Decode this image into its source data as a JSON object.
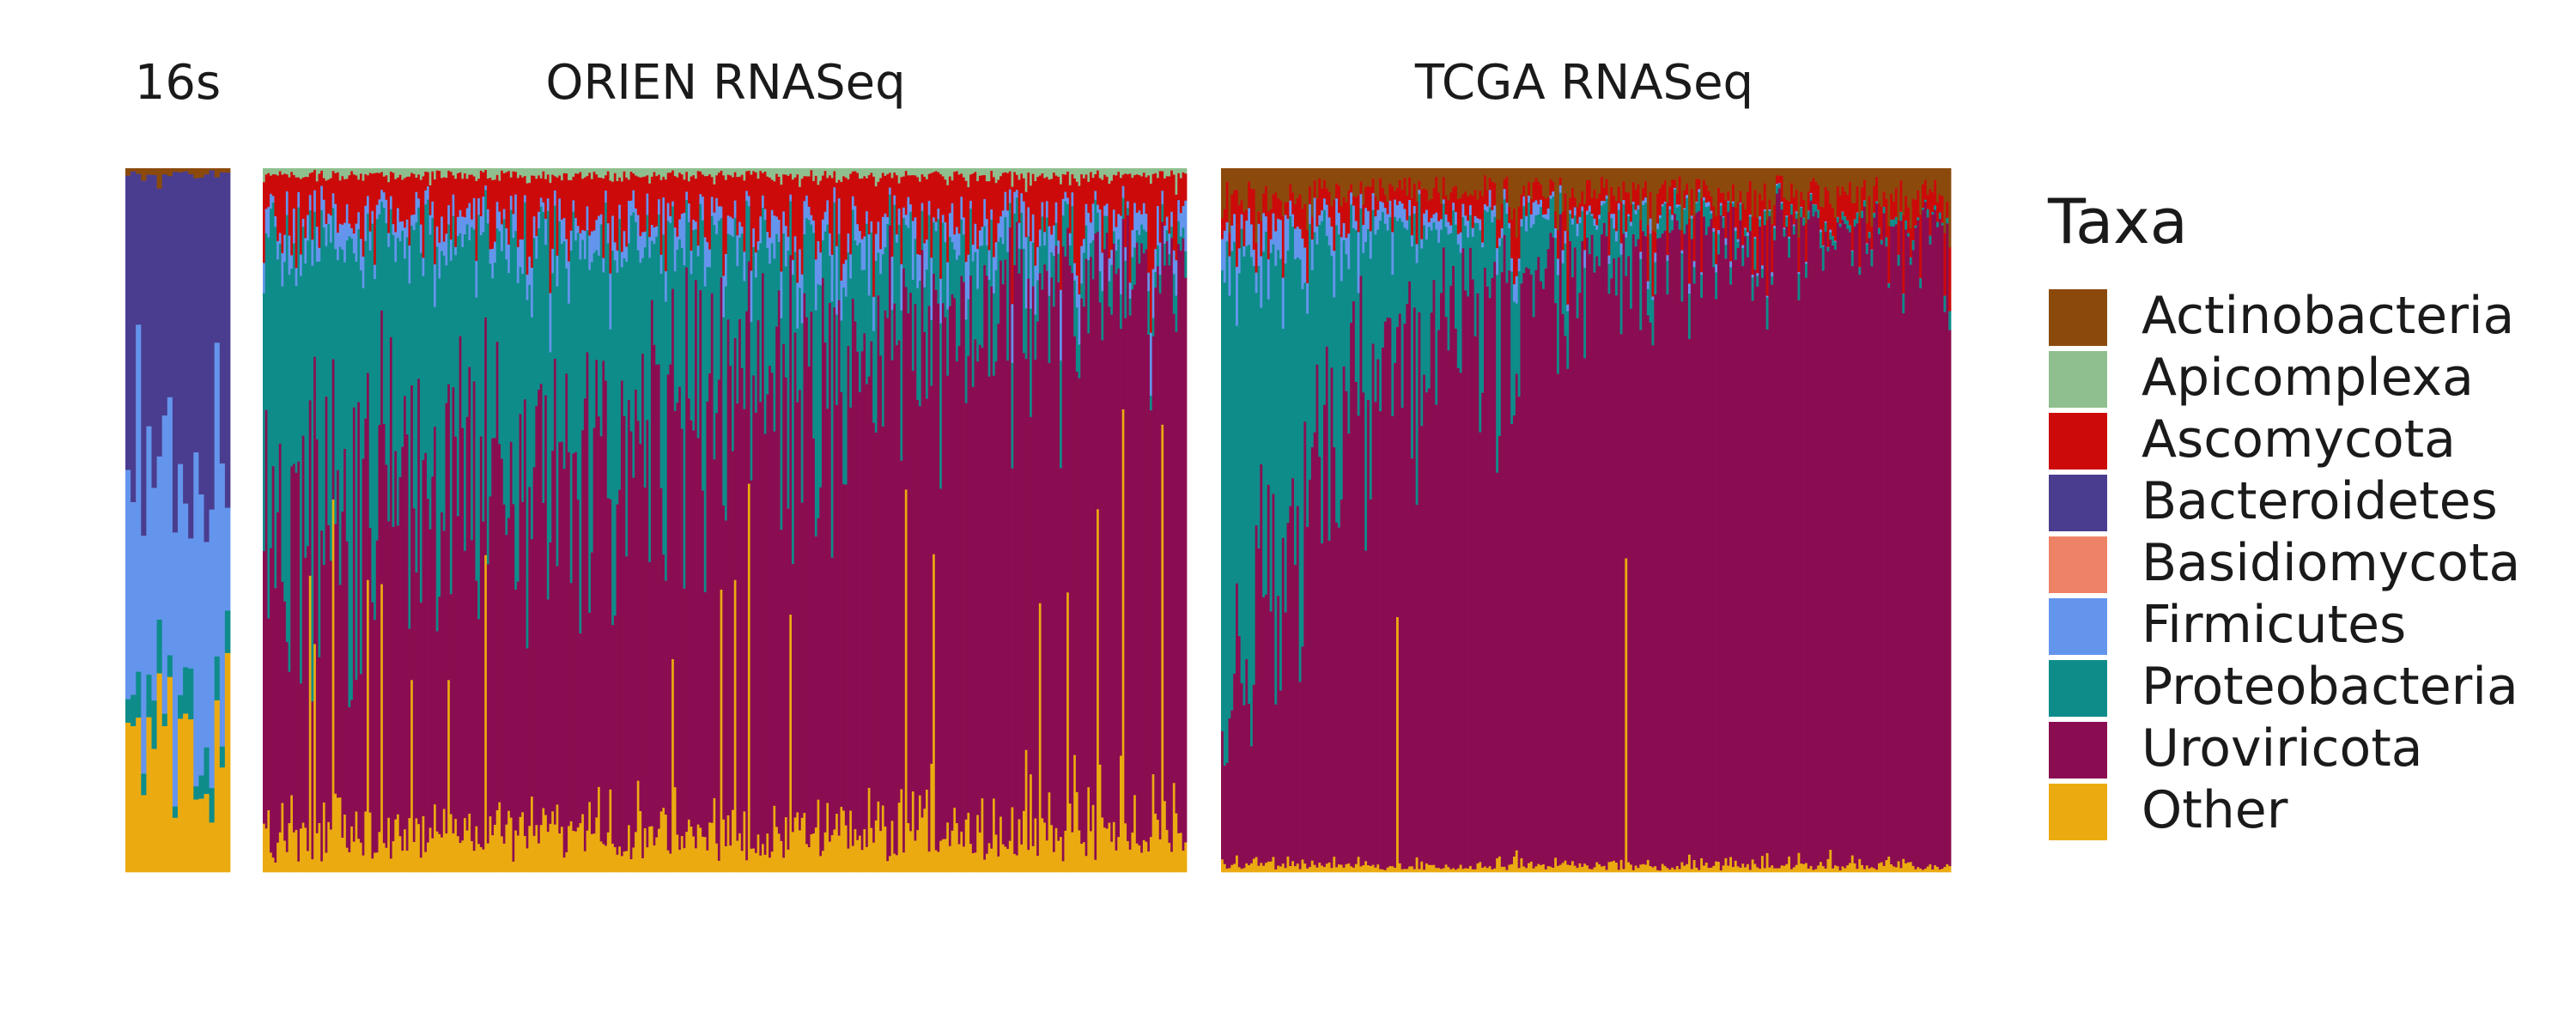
{
  "chart_data": {
    "type": "bar",
    "stacked": true,
    "normalized": true,
    "ylim": [
      0,
      1
    ],
    "grid": false,
    "legend_position": "right",
    "legend": {
      "title": "Taxa",
      "entries": [
        {
          "name": "Actinobacteria",
          "color": "#8B4A0C"
        },
        {
          "name": "Apicomplexa",
          "color": "#8FBF8F"
        },
        {
          "name": "Ascomycota",
          "color": "#CC0A0A"
        },
        {
          "name": "Bacteroidetes",
          "color": "#4A3D8F"
        },
        {
          "name": "Basidiomycota",
          "color": "#EE8266"
        },
        {
          "name": "Firmicutes",
          "color": "#6495ED"
        },
        {
          "name": "Proteobacteria",
          "color": "#0E8C8A"
        },
        {
          "name": "Uroviricota",
          "color": "#8B0D51"
        },
        {
          "name": "Other",
          "color": "#EBAB10"
        }
      ]
    },
    "panels": [
      {
        "title": "16s",
        "samples": 20,
        "mean_composition": {
          "Actinobacteria": 0.01,
          "Apicomplexa": 0.0,
          "Ascomycota": 0.0,
          "Bacteroidetes": 0.4,
          "Basidiomycota": 0.0,
          "Firmicutes": 0.36,
          "Proteobacteria": 0.05,
          "Uroviricota": 0.0,
          "Other": 0.18
        }
      },
      {
        "title": "ORIEN RNASeq",
        "samples": 400,
        "mean_composition": {
          "Actinobacteria": 0.0,
          "Apicomplexa": 0.01,
          "Ascomycota": 0.06,
          "Bacteroidetes": 0.0,
          "Basidiomycota": 0.0,
          "Firmicutes": 0.03,
          "Proteobacteria": 0.25,
          "Uroviricota": 0.6,
          "Other": 0.05
        }
      },
      {
        "title": "TCGA RNASeq",
        "samples": 300,
        "mean_composition": {
          "Actinobacteria": 0.04,
          "Apicomplexa": 0.0,
          "Ascomycota": 0.04,
          "Bacteroidetes": 0.0,
          "Basidiomycota": 0.0,
          "Firmicutes": 0.02,
          "Proteobacteria": 0.15,
          "Uroviricota": 0.74,
          "Other": 0.01
        }
      }
    ]
  }
}
